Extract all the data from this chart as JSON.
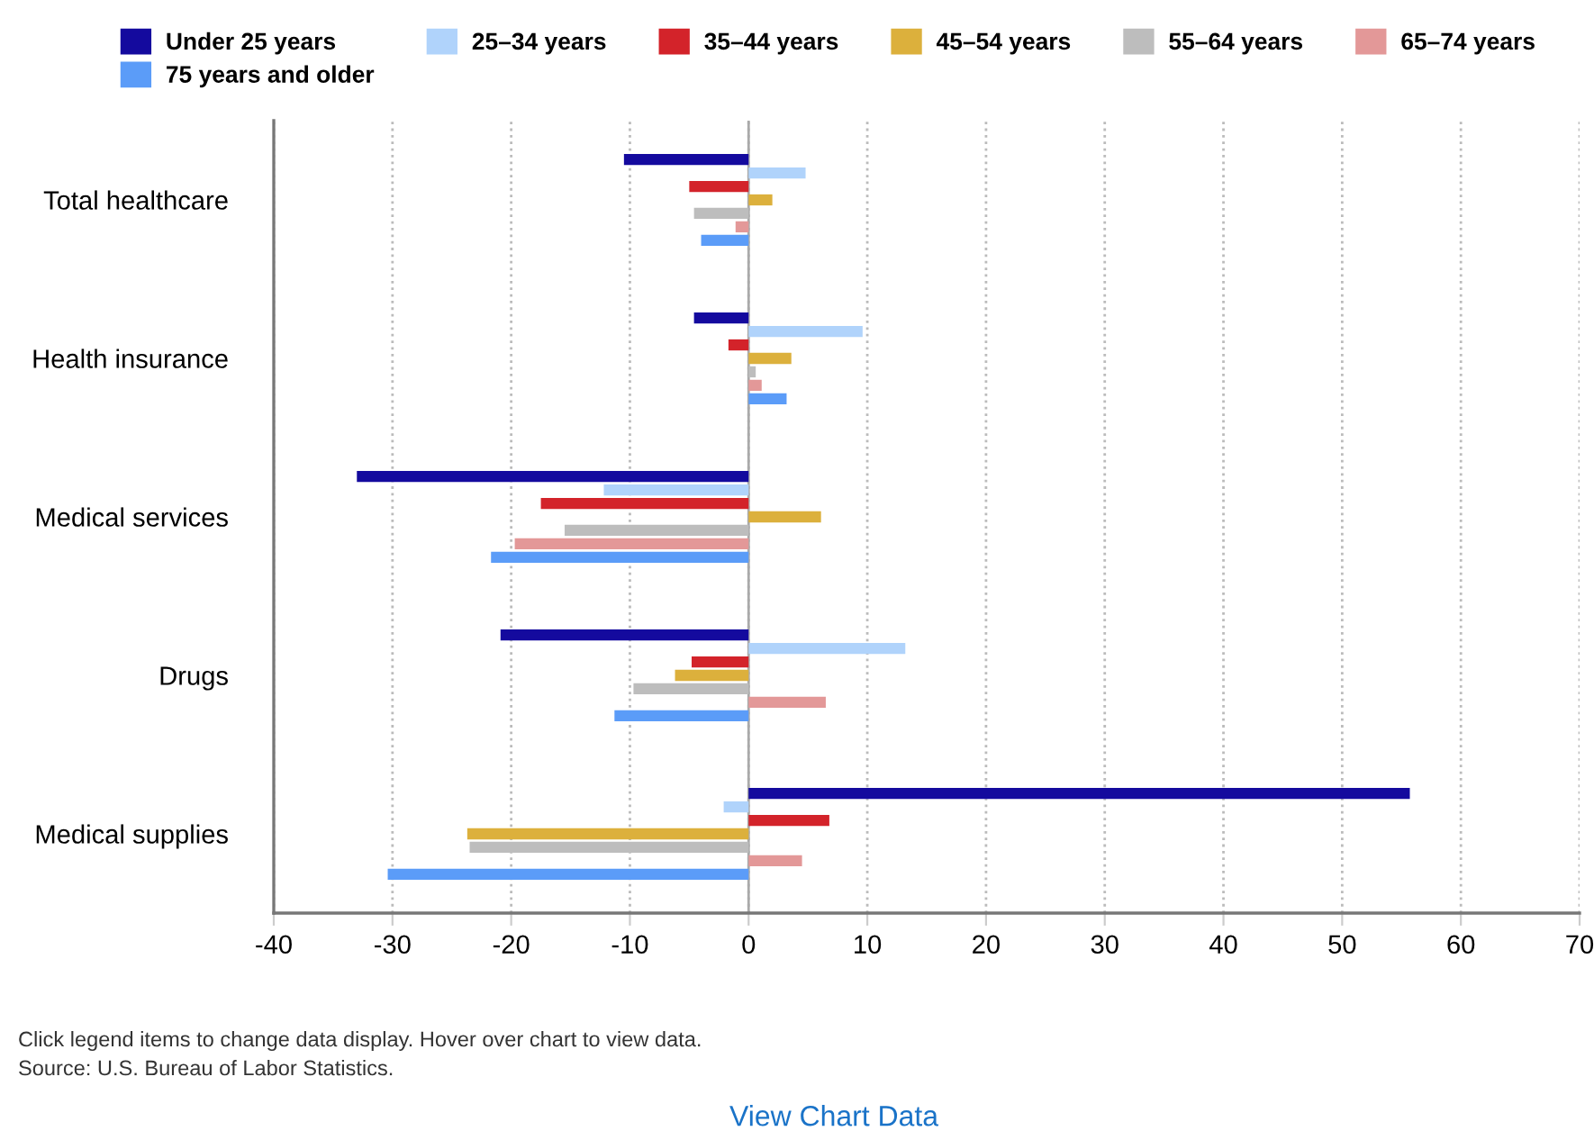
{
  "chart_data": {
    "type": "bar",
    "orientation": "horizontal",
    "categories": [
      "Total healthcare",
      "Health insurance",
      "Medical services",
      "Drugs",
      "Medical supplies"
    ],
    "series": [
      {
        "name": "Under 25 years",
        "color": "#140a9e",
        "values": [
          -10.5,
          -4.6,
          -33.0,
          -20.9,
          55.7
        ]
      },
      {
        "name": "25–34 years",
        "color": "#b0d3fb",
        "values": [
          4.8,
          9.6,
          -12.2,
          13.2,
          -2.1
        ]
      },
      {
        "name": "35–44 years",
        "color": "#d3232a",
        "values": [
          -5.0,
          -1.7,
          -17.5,
          -4.8,
          6.8
        ]
      },
      {
        "name": "45–54 years",
        "color": "#dcb03c",
        "values": [
          2.0,
          3.6,
          6.1,
          -6.2,
          -23.7
        ]
      },
      {
        "name": "55–64 years",
        "color": "#bdbdbd",
        "values": [
          -4.6,
          0.6,
          -15.5,
          -9.7,
          -23.5
        ]
      },
      {
        "name": "65–74 years",
        "color": "#e39898",
        "values": [
          -1.1,
          1.1,
          -19.7,
          6.5,
          4.5
        ]
      },
      {
        "name": "75 years and older",
        "color": "#5b9cf8",
        "values": [
          -4.0,
          3.2,
          -21.7,
          -11.3,
          -30.4
        ]
      }
    ],
    "xlim": [
      -40,
      70
    ],
    "xticks": [
      -40,
      -30,
      -20,
      -10,
      0,
      10,
      20,
      30,
      40,
      50,
      60,
      70
    ],
    "grid": "x",
    "legend": "top",
    "ref_lines": [
      {
        "axis": "x",
        "value": 0,
        "color": "#aaaaaa"
      }
    ],
    "annotations": [
      "Click legend items to change data display. Hover over chart to view data.",
      "Source: U.S. Bureau of Labor Statistics.",
      "View Chart Data"
    ]
  }
}
